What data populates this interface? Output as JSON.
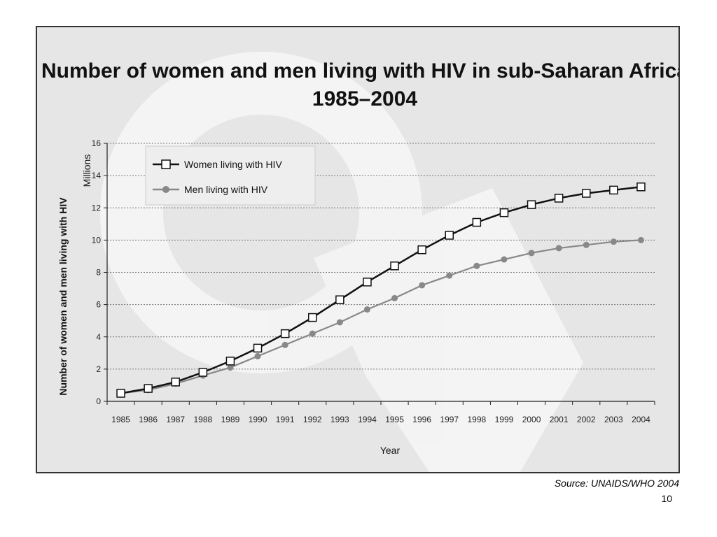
{
  "slide": {
    "source": "Source: UNAIDS/WHO 2004",
    "page_number": "10"
  },
  "chart_data": {
    "type": "line",
    "title": "Number of women and men living with HIV in sub-Saharan Africa",
    "subtitle": "1985–2004",
    "xlabel": "Year",
    "ylabel": "Number of women and men living with HIV",
    "yunit": "Millions",
    "ylim": [
      0,
      16
    ],
    "yticks": [
      0,
      2,
      4,
      6,
      8,
      10,
      12,
      14,
      16
    ],
    "grid": "horizontal dotted",
    "legend_position": "top-left",
    "categories": [
      "1985",
      "1986",
      "1987",
      "1988",
      "1989",
      "1990",
      "1991",
      "1992",
      "1993",
      "1994",
      "1995",
      "1996",
      "1997",
      "1998",
      "1999",
      "2000",
      "2001",
      "2002",
      "2003",
      "2004"
    ],
    "series": [
      {
        "name": "Women living with HIV",
        "color": "#111111",
        "marker": "open-square",
        "values": [
          0.5,
          0.8,
          1.2,
          1.8,
          2.5,
          3.3,
          4.2,
          5.2,
          6.3,
          7.4,
          8.4,
          9.4,
          10.3,
          11.1,
          11.7,
          12.2,
          12.6,
          12.9,
          13.1,
          13.3
        ]
      },
      {
        "name": "Men living with HIV",
        "color": "#888888",
        "marker": "filled-circle",
        "values": [
          0.5,
          0.7,
          1.1,
          1.6,
          2.1,
          2.8,
          3.5,
          4.2,
          4.9,
          5.7,
          6.4,
          7.2,
          7.8,
          8.4,
          8.8,
          9.2,
          9.5,
          9.7,
          9.9,
          10.0
        ]
      }
    ]
  }
}
